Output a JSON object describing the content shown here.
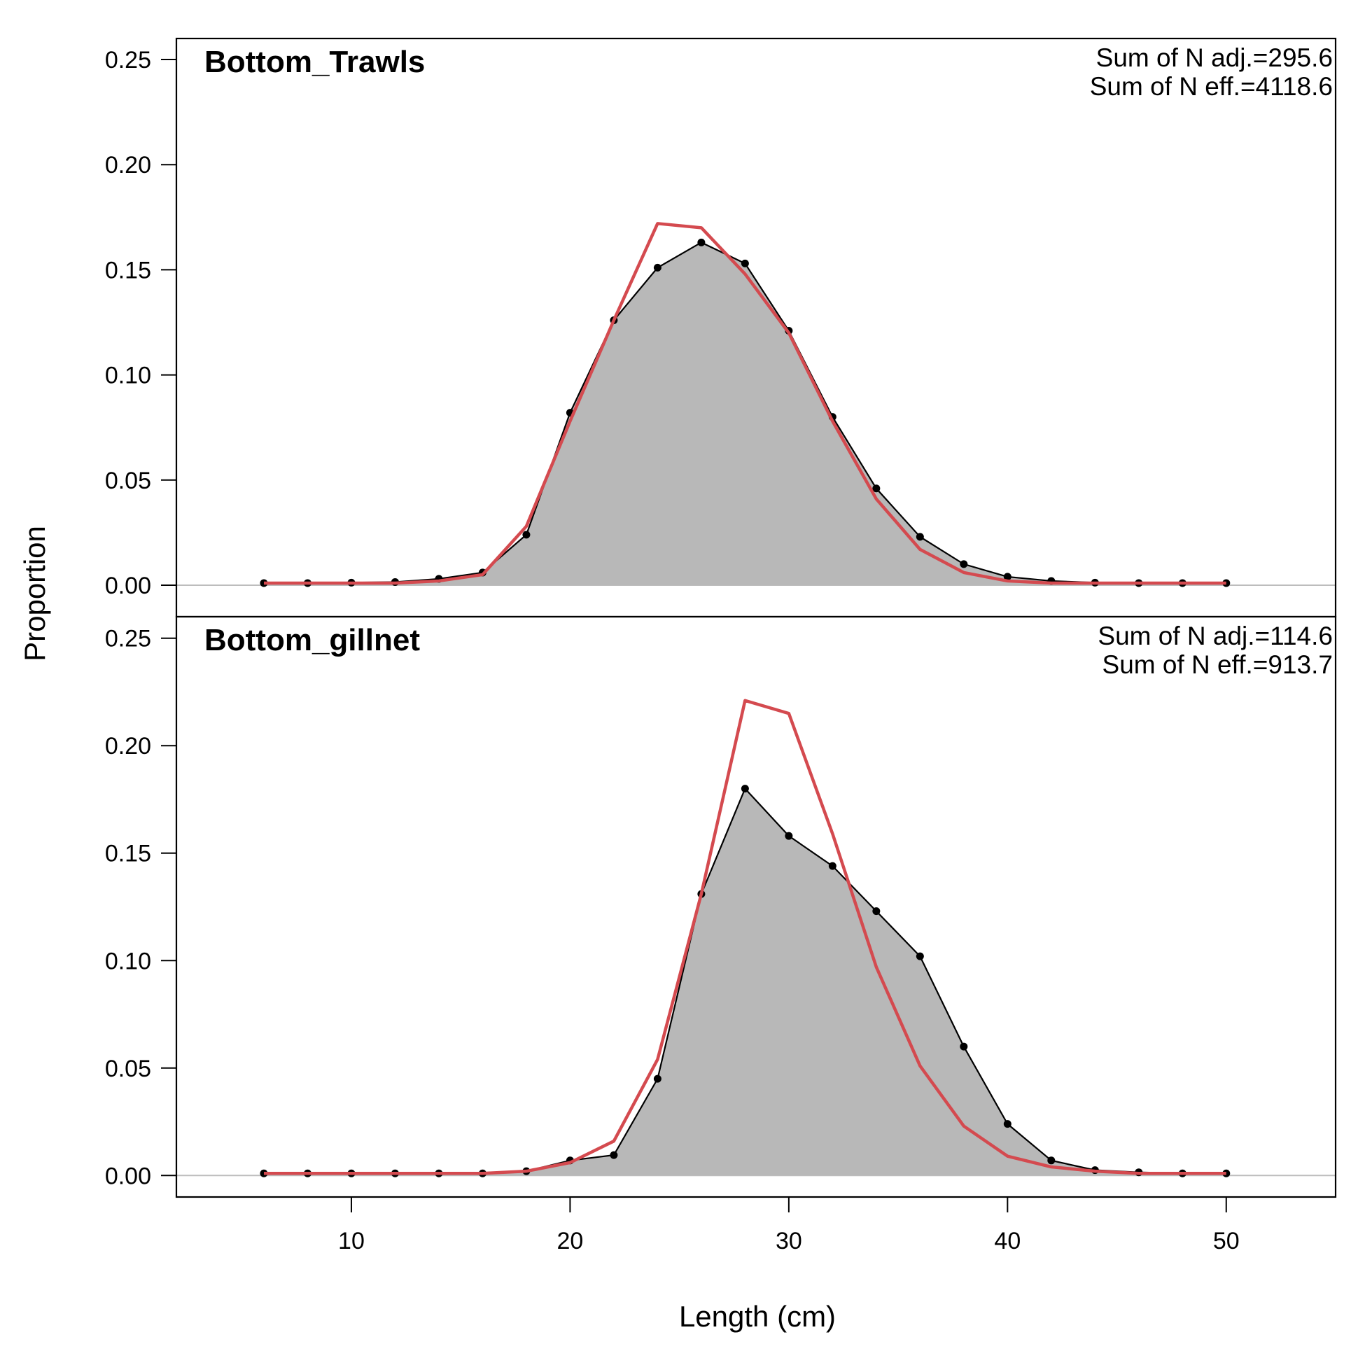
{
  "chart_data": {
    "type": "area",
    "xlabel": "Length (cm)",
    "ylabel": "Proportion",
    "xlim": [
      2,
      55
    ],
    "x_ticks": [
      10,
      20,
      30,
      40,
      50
    ],
    "x_tick_labels": [
      "10",
      "20",
      "30",
      "40",
      "50"
    ],
    "grid": false,
    "colors": {
      "observed_fill": "#b8b8b8",
      "observed_line": "#000000",
      "expected_line": "#d44a4f",
      "zero_line": "#bdbdbd"
    },
    "panels": [
      {
        "title": "Bottom_Trawls",
        "annotations": [
          "Sum of N adj.=295.6",
          "Sum of N eff.=4118.6"
        ],
        "ylim": [
          -0.015,
          0.26
        ],
        "y_ticks": [
          0,
          0.05,
          0.1,
          0.15,
          0.2,
          0.25
        ],
        "y_tick_labels": [
          "0.00",
          "0.05",
          "0.10",
          "0.15",
          "0.20",
          "0.25"
        ],
        "x": [
          6,
          8,
          10,
          12,
          14,
          16,
          18,
          20,
          22,
          24,
          26,
          28,
          30,
          32,
          34,
          36,
          38,
          40,
          42,
          44,
          46,
          48,
          50
        ],
        "series": [
          {
            "role": "observed",
            "values": [
              0.001,
              0.001,
              0.0012,
              0.0015,
              0.003,
              0.006,
              0.024,
              0.082,
              0.126,
              0.151,
              0.163,
              0.153,
              0.121,
              0.08,
              0.046,
              0.023,
              0.01,
              0.004,
              0.002,
              0.0012,
              0.001,
              0.001,
              0.001
            ]
          },
          {
            "role": "expected",
            "values": [
              0.001,
              0.001,
              0.001,
              0.001,
              0.002,
              0.005,
              0.028,
              0.078,
              0.126,
              0.172,
              0.17,
              0.148,
              0.12,
              0.078,
              0.041,
              0.017,
              0.006,
              0.002,
              0.001,
              0.001,
              0.001,
              0.001,
              0.001
            ]
          }
        ]
      },
      {
        "title": "Bottom_gillnet",
        "annotations": [
          "Sum of N adj.=114.6",
          "Sum of N eff.=913.7"
        ],
        "ylim": [
          -0.01,
          0.26
        ],
        "y_ticks": [
          0,
          0.05,
          0.1,
          0.15,
          0.2,
          0.25
        ],
        "y_tick_labels": [
          "0.00",
          "0.05",
          "0.10",
          "0.15",
          "0.20",
          "0.25"
        ],
        "x": [
          6,
          8,
          10,
          12,
          14,
          16,
          18,
          20,
          22,
          24,
          26,
          28,
          30,
          32,
          34,
          36,
          38,
          40,
          42,
          44,
          46,
          48,
          50
        ],
        "series": [
          {
            "role": "observed",
            "values": [
              0.001,
              0.001,
              0.001,
              0.001,
              0.001,
              0.001,
              0.002,
              0.007,
              0.0095,
              0.045,
              0.131,
              0.18,
              0.158,
              0.144,
              0.123,
              0.102,
              0.06,
              0.024,
              0.007,
              0.0025,
              0.0015,
              0.001,
              0.001
            ]
          },
          {
            "role": "expected",
            "values": [
              0.001,
              0.001,
              0.001,
              0.001,
              0.001,
              0.001,
              0.002,
              0.006,
              0.016,
              0.054,
              0.131,
              0.221,
              0.215,
              0.159,
              0.097,
              0.051,
              0.023,
              0.009,
              0.004,
              0.002,
              0.001,
              0.001,
              0.001
            ]
          }
        ]
      }
    ]
  }
}
